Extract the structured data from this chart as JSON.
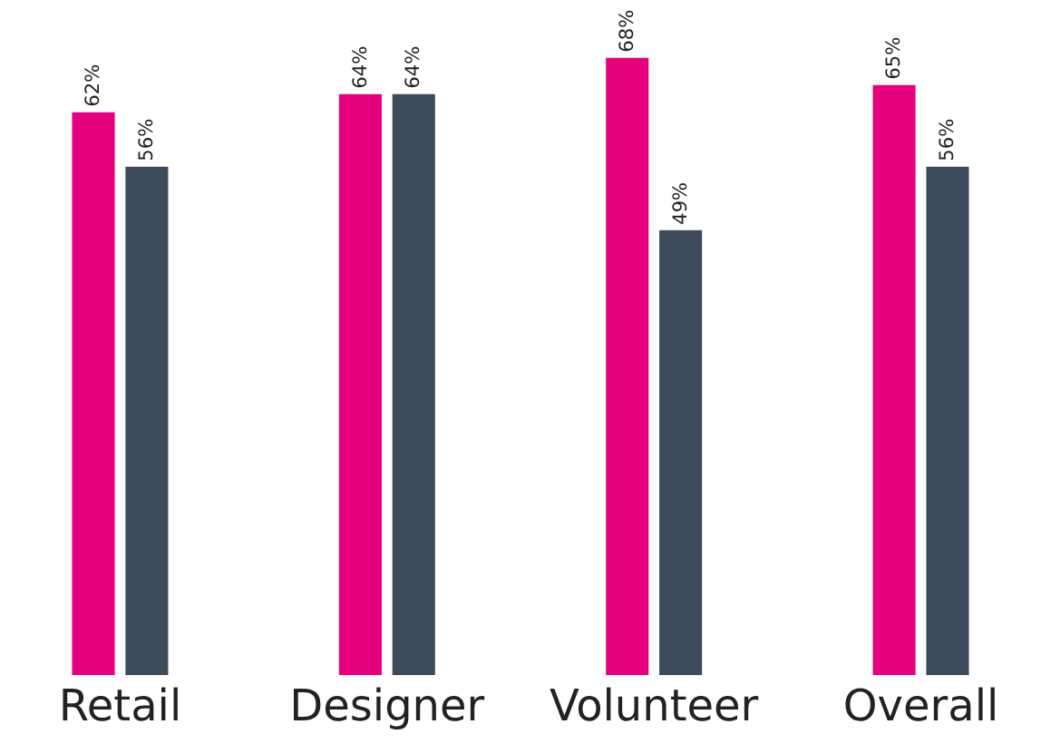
{
  "chart_data": {
    "type": "bar",
    "categories": [
      "Retail",
      "Designer",
      "Volunteer",
      "Overall"
    ],
    "series": [
      {
        "color": "#e6007e",
        "values": [
          62,
          64,
          68,
          65
        ],
        "value_labels": [
          "62%",
          "64%",
          "68%",
          "65%"
        ]
      },
      {
        "color": "#3d4a5a",
        "values": [
          56,
          64,
          49,
          56
        ],
        "value_labels": [
          "56%",
          "64%",
          "49%",
          "56%"
        ]
      }
    ],
    "legend": false,
    "grid": false
  }
}
